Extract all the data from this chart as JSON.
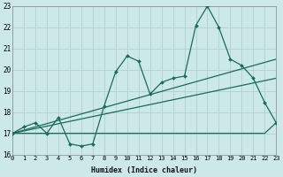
{
  "bg_color": "#cce8e8",
  "grid_color": "#b0d0d0",
  "line_color": "#1a6b5a",
  "xlabel": "Humidex (Indice chaleur)",
  "xlim": [
    0,
    23
  ],
  "ylim": [
    16,
    23
  ],
  "yticks": [
    16,
    17,
    18,
    19,
    20,
    21,
    22,
    23
  ],
  "xticks": [
    0,
    1,
    2,
    3,
    4,
    5,
    6,
    7,
    8,
    9,
    10,
    11,
    12,
    13,
    14,
    15,
    16,
    17,
    18,
    19,
    20,
    21,
    22,
    23
  ],
  "zigzag_x": [
    0,
    1,
    2,
    3,
    4,
    5,
    6,
    7,
    8,
    9,
    10,
    11,
    12,
    13,
    14,
    15,
    16,
    17,
    18,
    19,
    20,
    21,
    22,
    23
  ],
  "zigzag_y": [
    17.0,
    17.3,
    17.5,
    17.0,
    17.75,
    16.5,
    16.4,
    16.5,
    18.3,
    19.9,
    20.65,
    20.4,
    18.85,
    19.4,
    19.6,
    19.7,
    22.1,
    23.0,
    22.0,
    20.5,
    20.2,
    19.6,
    18.45,
    17.5
  ],
  "trend1_x": [
    0,
    23
  ],
  "trend1_y": [
    17.0,
    20.5
  ],
  "trend2_x": [
    0,
    23
  ],
  "trend2_y": [
    17.0,
    19.6
  ],
  "flat_x": [
    0,
    3,
    4,
    5,
    6,
    7,
    8,
    9,
    10,
    11,
    12,
    13,
    14,
    15,
    16,
    17,
    18,
    19,
    20,
    21,
    22,
    23
  ],
  "flat_y": [
    17.0,
    17.0,
    17.0,
    17.0,
    17.0,
    17.0,
    17.0,
    17.0,
    17.0,
    17.0,
    17.0,
    17.0,
    17.0,
    17.0,
    17.0,
    17.0,
    17.0,
    17.0,
    17.0,
    17.0,
    17.0,
    17.5
  ]
}
